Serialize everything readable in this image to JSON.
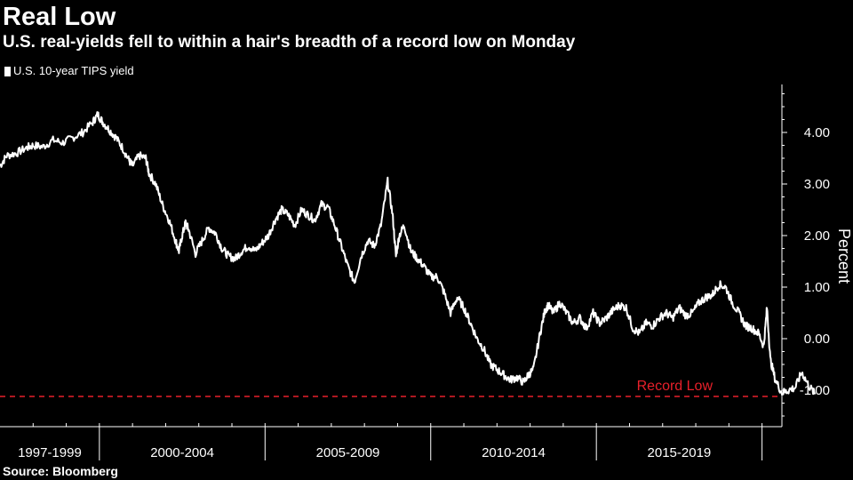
{
  "header": {
    "title": "Real Low",
    "subtitle": "U.S. real-yields fell to within a hair's breadth of a record low on Monday"
  },
  "legend": {
    "series_label": "U.S. 10-year TIPS yield"
  },
  "footer": {
    "source": "Source: Bloomberg"
  },
  "colors": {
    "background": "#000000",
    "series": "#ffffff",
    "record_line": "#e8202a",
    "axis": "#ffffff"
  },
  "chart_data": {
    "type": "line",
    "title": "Real Low",
    "subtitle": "U.S. real-yields fell to within a hair's breadth of a record low on Monday",
    "ylabel": "Percent",
    "ylim": [
      -1.5,
      4.9
    ],
    "yticks": [
      4.0,
      3.0,
      2.0,
      1.0,
      0.0,
      -1.0
    ],
    "ytick_labels": [
      "4.00",
      "3.00",
      "2.00",
      "1.00",
      "0.00",
      "-1.00"
    ],
    "xlim": [
      1997.0,
      2020.6
    ],
    "x_period_labels": [
      {
        "label": "1997-1999",
        "start": 1997.0,
        "end": 2000.0
      },
      {
        "label": "2000-2004",
        "start": 2000.0,
        "end": 2005.0
      },
      {
        "label": "2005-2009",
        "start": 2005.0,
        "end": 2010.0
      },
      {
        "label": "2010-2014",
        "start": 2010.0,
        "end": 2015.0
      },
      {
        "label": "2015-2019",
        "start": 2015.0,
        "end": 2020.0
      }
    ],
    "grid": false,
    "legend_position": "top-left",
    "series": [
      {
        "name": "U.S. 10-year TIPS yield",
        "x": [
          1997.0,
          1997.2,
          1997.5,
          1997.8,
          1998.0,
          1998.3,
          1998.6,
          1998.9,
          1999.2,
          1999.5,
          1999.8,
          1999.95,
          2000.1,
          2000.3,
          2000.5,
          2000.7,
          2000.9,
          2001.0,
          2001.2,
          2001.4,
          2001.5,
          2001.7,
          2001.9,
          2002.1,
          2002.3,
          2002.4,
          2002.5,
          2002.6,
          2002.7,
          2002.9,
          2003.1,
          2003.3,
          2003.5,
          2003.7,
          2003.9,
          2004.1,
          2004.3,
          2004.5,
          2004.7,
          2004.9,
          2005.1,
          2005.3,
          2005.5,
          2005.7,
          2005.9,
          2006.1,
          2006.3,
          2006.5,
          2006.7,
          2006.9,
          2007.1,
          2007.3,
          2007.5,
          2007.7,
          2007.9,
          2008.1,
          2008.3,
          2008.5,
          2008.7,
          2008.85,
          2008.95,
          2009.05,
          2009.2,
          2009.4,
          2009.6,
          2009.8,
          2010.0,
          2010.2,
          2010.4,
          2010.6,
          2010.8,
          2011.0,
          2011.2,
          2011.4,
          2011.6,
          2011.8,
          2012.0,
          2012.2,
          2012.4,
          2012.6,
          2012.8,
          2012.95,
          2013.1,
          2013.3,
          2013.45,
          2013.55,
          2013.7,
          2013.9,
          2014.1,
          2014.3,
          2014.5,
          2014.7,
          2014.9,
          2015.1,
          2015.3,
          2015.5,
          2015.7,
          2015.9,
          2016.1,
          2016.3,
          2016.5,
          2016.7,
          2016.9,
          2017.1,
          2017.3,
          2017.5,
          2017.7,
          2017.9,
          2018.1,
          2018.3,
          2018.5,
          2018.7,
          2018.9,
          2019.1,
          2019.3,
          2019.5,
          2019.7,
          2019.9,
          2020.05,
          2020.15,
          2020.25,
          2020.4,
          2020.6,
          2020.8,
          2021.0,
          2021.2,
          2021.4,
          2021.6
        ],
        "y": [
          3.35,
          3.55,
          3.6,
          3.7,
          3.75,
          3.72,
          3.85,
          3.8,
          3.9,
          4.0,
          4.2,
          4.35,
          4.2,
          4.05,
          3.9,
          3.7,
          3.45,
          3.35,
          3.55,
          3.5,
          3.2,
          3.0,
          2.6,
          2.3,
          1.9,
          1.7,
          2.0,
          2.25,
          2.1,
          1.65,
          1.9,
          2.15,
          2.05,
          1.75,
          1.6,
          1.55,
          1.7,
          1.8,
          1.7,
          1.85,
          2.0,
          2.3,
          2.5,
          2.4,
          2.2,
          2.5,
          2.4,
          2.3,
          2.6,
          2.55,
          2.2,
          1.8,
          1.4,
          1.1,
          1.6,
          1.9,
          1.8,
          2.2,
          3.05,
          2.4,
          1.6,
          2.0,
          2.2,
          1.7,
          1.55,
          1.4,
          1.2,
          1.2,
          0.9,
          0.5,
          0.8,
          0.6,
          0.3,
          0.0,
          -0.2,
          -0.5,
          -0.6,
          -0.7,
          -0.8,
          -0.75,
          -0.85,
          -0.7,
          -0.6,
          0.1,
          0.55,
          0.65,
          0.5,
          0.7,
          0.5,
          0.3,
          0.4,
          0.2,
          0.5,
          0.3,
          0.4,
          0.55,
          0.65,
          0.6,
          0.2,
          0.1,
          0.3,
          0.25,
          0.4,
          0.5,
          0.4,
          0.6,
          0.45,
          0.5,
          0.7,
          0.8,
          0.85,
          1.05,
          1.0,
          0.7,
          0.5,
          0.25,
          0.2,
          0.1,
          -0.15,
          0.6,
          -0.4,
          -0.8,
          -1.05,
          -1.0,
          -0.95,
          -0.65,
          -0.9,
          -1.08
        ]
      }
    ],
    "annotations": [
      {
        "type": "hline",
        "y": -1.12,
        "label": "Record Low",
        "color": "#e8202a",
        "style": "dashed"
      }
    ]
  }
}
